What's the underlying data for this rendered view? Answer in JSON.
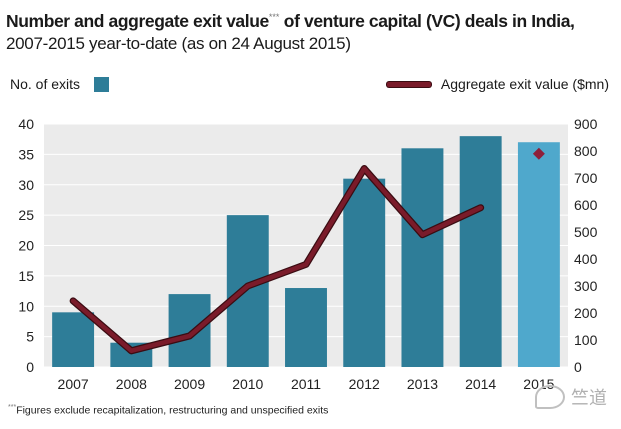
{
  "title": {
    "main": "Number and aggregate exit value",
    "marker": "***",
    "main_rest": " of venture capital (VC) deals in India,",
    "subtitle": "2007-2015 year-to-date (as on 24 August 2015)"
  },
  "legend": {
    "bars_label": "No. of exits",
    "line_label": "Aggregate exit value ($mn)"
  },
  "footnote": {
    "marker": "***",
    "text": "Figures exclude recapitalization, restructuring and unspecified exits"
  },
  "watermark": {
    "text": "竺道"
  },
  "colors": {
    "bar": "#2e7d98",
    "bar_2015": "#4fa8cc",
    "line": "#7a1b2a",
    "line_outline": "#3b0c12",
    "grid": "#d6d6d6",
    "plot_bg": "#ebebeb"
  },
  "chart_data": {
    "type": "bar",
    "categories": [
      "2007",
      "2008",
      "2009",
      "2010",
      "2011",
      "2012",
      "2013",
      "2014",
      "2015"
    ],
    "series": [
      {
        "name": "No. of exits",
        "type": "bar",
        "axis": "left",
        "values": [
          9,
          4,
          12,
          25,
          13,
          31,
          36,
          38,
          37
        ]
      },
      {
        "name": "Aggregate exit value ($mn)",
        "type": "line",
        "axis": "right",
        "values": [
          245,
          60,
          115,
          300,
          380,
          735,
          490,
          590,
          790
        ],
        "line_through": [
          "2007",
          "2008",
          "2009",
          "2010",
          "2011",
          "2012",
          "2013",
          "2014"
        ],
        "marker_only": [
          "2015"
        ]
      }
    ],
    "y_left": {
      "min": 0,
      "max": 40,
      "ticks": [
        "0",
        "5",
        "10",
        "15",
        "20",
        "25",
        "30",
        "35",
        "40"
      ]
    },
    "y_right": {
      "min": 0,
      "max": 900,
      "ticks": [
        "0",
        "100",
        "200",
        "300",
        "400",
        "500",
        "600",
        "700",
        "800",
        "900"
      ]
    },
    "grid": true,
    "legend_placement": "top"
  }
}
